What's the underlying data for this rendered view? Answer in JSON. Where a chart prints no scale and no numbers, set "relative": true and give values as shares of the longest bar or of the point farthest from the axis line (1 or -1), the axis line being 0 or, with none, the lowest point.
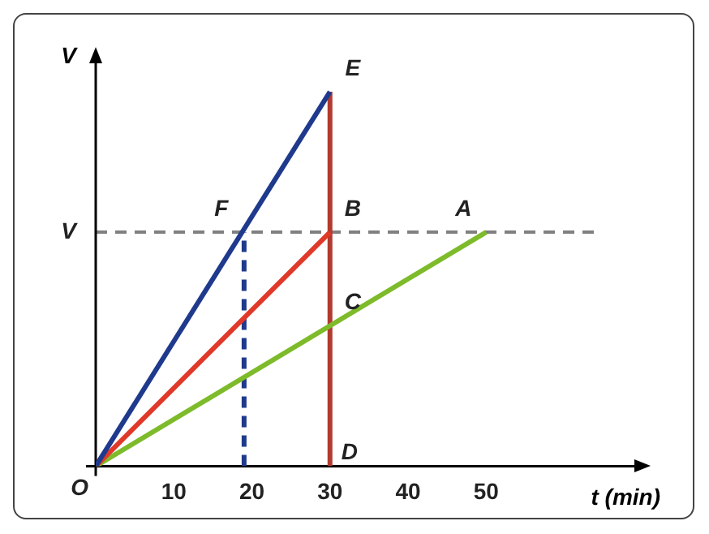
{
  "chart_data": {
    "type": "line",
    "relative": true,
    "ylabel": "V",
    "xlabel": "t (min)",
    "xlim": [
      0,
      64
    ],
    "xticks": [
      10,
      20,
      30,
      40,
      50
    ],
    "grid": false,
    "legend": false,
    "marker": "none",
    "series": [
      {
        "color": "#1f3a8c",
        "x": [
          0,
          30
        ],
        "values": [
          0,
          1
        ]
      },
      {
        "color": "#e0392a",
        "x": [
          0,
          30
        ],
        "values": [
          0,
          0.625
        ]
      },
      {
        "color": "#7dbb2a",
        "x": [
          0,
          50
        ],
        "values": [
          0,
          0.625
        ]
      },
      {
        "color": "#b23a2e",
        "x": [
          30,
          30
        ],
        "values": [
          0,
          1
        ]
      },
      {
        "color": "#1f3a8c",
        "x": [
          19,
          19
        ],
        "values": [
          0,
          0.625
        ],
        "line_style": "dashed"
      }
    ],
    "ref_lines": [
      {
        "axis": "y",
        "value": 0.625,
        "label": "V",
        "color": "#808080",
        "line_style": "dashed"
      }
    ],
    "annotations": [
      {
        "text": "O",
        "x": 0,
        "y": 0
      },
      {
        "text": "F",
        "x": 19,
        "y": 0.625
      },
      {
        "text": "E",
        "x": 30,
        "y": 1
      },
      {
        "text": "B",
        "x": 30,
        "y": 0.625
      },
      {
        "text": "A",
        "x": 50,
        "y": 0.625
      },
      {
        "text": "C",
        "x": 30,
        "y": 0.375
      },
      {
        "text": "D",
        "x": 30,
        "y": 0
      }
    ]
  }
}
